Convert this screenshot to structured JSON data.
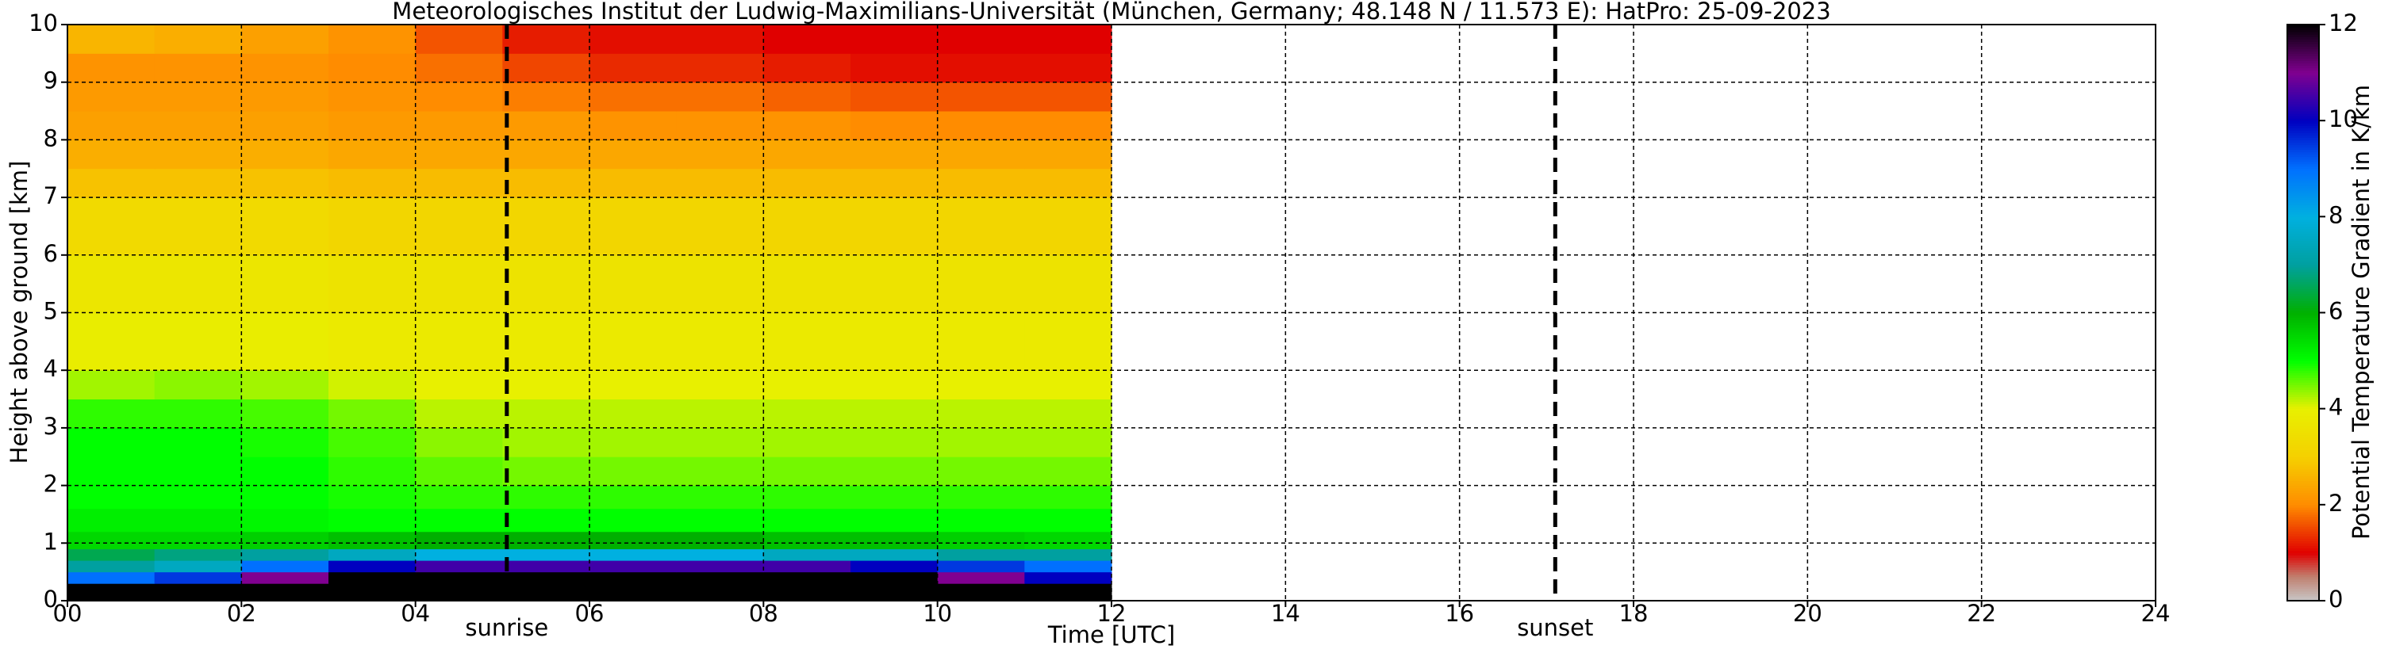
{
  "chart_data": {
    "type": "heatmap",
    "title": "Meteorologisches Institut der Ludwig-Maximilians-Universität (München, Germany; 48.148 N / 11.573 E):    HatPro: 25-09-2023",
    "xlabel": "Time [UTC]",
    "ylabel": "Height above ground [km]",
    "colorbar_label": "Potential Temperature Gradient in K/km",
    "xlim": [
      0,
      24
    ],
    "ylim": [
      0,
      10
    ],
    "xticks": [
      {
        "value": 0,
        "label": "00"
      },
      {
        "value": 2,
        "label": "02"
      },
      {
        "value": 4,
        "label": "04"
      },
      {
        "value": 6,
        "label": "06"
      },
      {
        "value": 8,
        "label": "08"
      },
      10,
      12,
      14,
      16,
      18,
      20,
      22,
      24
    ],
    "yticks": [
      0,
      1,
      2,
      3,
      4,
      5,
      6,
      7,
      8,
      9,
      10
    ],
    "grid": true,
    "x_edges": [
      0,
      1,
      2,
      3,
      4,
      5,
      6,
      7,
      8,
      9,
      10,
      11,
      12
    ],
    "y_edges": [
      0,
      0.3,
      0.5,
      0.7,
      0.9,
      1.2,
      1.6,
      2,
      2.5,
      3,
      3.5,
      4,
      5,
      6,
      7,
      7.5,
      8,
      8.5,
      9,
      9.5,
      10
    ],
    "values": [
      [
        12,
        12,
        12,
        12,
        12,
        12,
        12,
        12,
        12,
        12,
        12,
        12
      ],
      [
        9,
        9.5,
        11,
        12,
        12,
        12,
        12,
        12,
        12,
        12,
        11,
        10
      ],
      [
        7,
        7.5,
        9,
        10,
        10.5,
        10.5,
        10.5,
        10.5,
        10.5,
        10,
        9.5,
        9
      ],
      [
        6.5,
        6.8,
        7,
        7.5,
        8,
        8,
        8,
        8,
        7.5,
        7.5,
        7,
        7
      ],
      [
        5.5,
        5.5,
        5.6,
        5.8,
        6,
        6,
        6,
        6,
        5.8,
        5.8,
        5.6,
        5.5
      ],
      [
        5.2,
        5.2,
        5.1,
        5,
        5,
        5,
        5,
        5,
        5,
        5,
        5,
        5
      ],
      [
        5,
        5,
        5,
        4.9,
        4.8,
        4.8,
        4.8,
        4.8,
        4.8,
        4.8,
        4.8,
        4.8
      ],
      [
        5,
        5,
        5,
        4.8,
        4.6,
        4.5,
        4.5,
        4.5,
        4.5,
        4.5,
        4.5,
        4.5
      ],
      [
        5,
        5,
        4.9,
        4.7,
        4.4,
        4.3,
        4.3,
        4.3,
        4.3,
        4.3,
        4.3,
        4.3
      ],
      [
        4.8,
        4.8,
        4.7,
        4.5,
        4.2,
        4.2,
        4.2,
        4.2,
        4.2,
        4.2,
        4.2,
        4.2
      ],
      [
        4.3,
        4.4,
        4.3,
        4.1,
        4,
        4,
        4,
        4,
        4,
        4,
        4,
        4
      ],
      [
        3.9,
        3.9,
        3.9,
        3.8,
        3.8,
        3.8,
        3.8,
        3.8,
        3.8,
        3.8,
        3.8,
        3.8
      ],
      [
        3.7,
        3.7,
        3.7,
        3.6,
        3.6,
        3.6,
        3.6,
        3.6,
        3.6,
        3.6,
        3.6,
        3.6
      ],
      [
        3.3,
        3.3,
        3.3,
        3.2,
        3.2,
        3.2,
        3.2,
        3.2,
        3.2,
        3.2,
        3.2,
        3.2
      ],
      [
        2.8,
        2.8,
        2.8,
        2.7,
        2.7,
        2.7,
        2.7,
        2.7,
        2.7,
        2.7,
        2.7,
        2.7
      ],
      [
        2.5,
        2.5,
        2.5,
        2.4,
        2.4,
        2.4,
        2.4,
        2.4,
        2.4,
        2.4,
        2.4,
        2.4
      ],
      [
        2.3,
        2.3,
        2.3,
        2.2,
        2.2,
        2.2,
        2.1,
        2.1,
        2.1,
        2,
        2,
        2
      ],
      [
        2.2,
        2.2,
        2.2,
        2.1,
        2,
        1.9,
        1.8,
        1.8,
        1.7,
        1.6,
        1.6,
        1.6
      ],
      [
        2.1,
        2.1,
        2.1,
        2,
        1.8,
        1.5,
        1.3,
        1.3,
        1.2,
        1.1,
        1.1,
        1.1
      ],
      [
        2.6,
        2.5,
        2.3,
        2.1,
        1.6,
        1.2,
        1.1,
        1.1,
        1,
        1,
        1,
        1
      ]
    ],
    "colorscale": [
      [
        0,
        "#c8c8c8"
      ],
      [
        0.5,
        "#c08070"
      ],
      [
        1,
        "#e00000"
      ],
      [
        2,
        "#ff8c00"
      ],
      [
        3,
        "#f5d000"
      ],
      [
        4,
        "#e8f000"
      ],
      [
        5,
        "#00ff00"
      ],
      [
        6,
        "#00b000"
      ],
      [
        7,
        "#00a0a0"
      ],
      [
        8,
        "#00b0e0"
      ],
      [
        9,
        "#0070ff"
      ],
      [
        10,
        "#0000c0"
      ],
      [
        11,
        "#800090"
      ],
      [
        12,
        "#000000"
      ]
    ],
    "colorbar_lim": [
      0,
      12
    ],
    "colorbar_ticks": [
      0,
      2,
      4,
      6,
      8,
      10,
      12
    ],
    "vlines": [
      {
        "x": 5.05,
        "label": "sunrise"
      },
      {
        "x": 17.1,
        "label": "sunset"
      }
    ]
  }
}
